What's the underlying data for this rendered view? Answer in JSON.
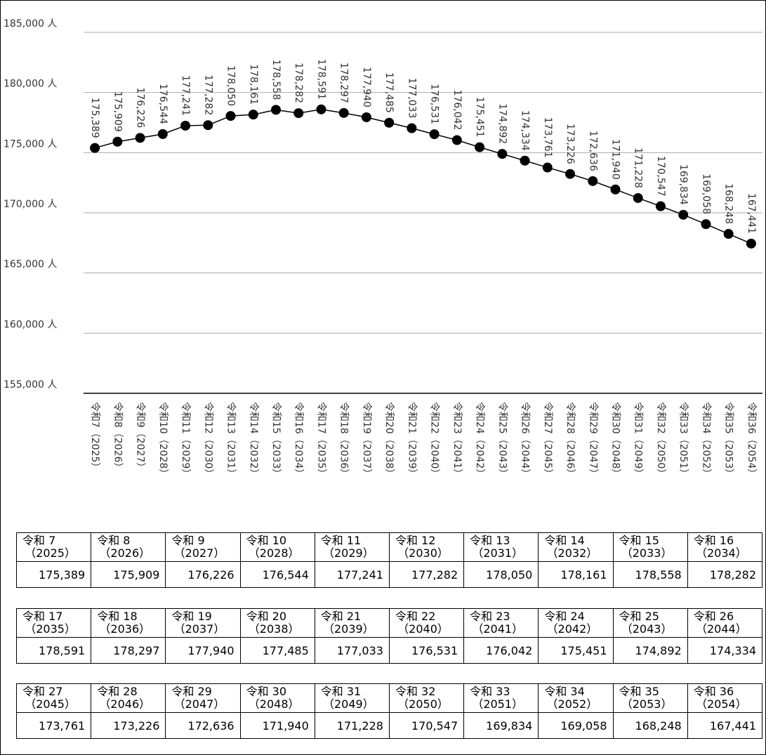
{
  "chart_data": {
    "type": "line",
    "categories": [
      "令和7（2025）",
      "令和8（2026）",
      "令和9（2027）",
      "令和10（2028）",
      "令和11（2029）",
      "令和12（2030）",
      "令和13（2031）",
      "令和14（2032）",
      "令和15（2033）",
      "令和16（2034）",
      "令和17（2035）",
      "令和18（2036）",
      "令和19（2037）",
      "令和20（2038）",
      "令和21（2039）",
      "令和22（2040）",
      "令和23（2041）",
      "令和24（2042）",
      "令和25（2043）",
      "令和26（2044）",
      "令和27（2045）",
      "令和28（2046）",
      "令和29（2047）",
      "令和30（2048）",
      "令和31（2049）",
      "令和32（2050）",
      "令和33（2051）",
      "令和34（2052）",
      "令和35（2053）",
      "令和36（2054）"
    ],
    "values": [
      175389,
      175909,
      176226,
      176544,
      177241,
      177282,
      178050,
      178161,
      178558,
      178282,
      178591,
      178297,
      177940,
      177485,
      177033,
      176531,
      176042,
      175451,
      174892,
      174334,
      173761,
      173226,
      172636,
      171940,
      171228,
      170547,
      169834,
      169058,
      168248,
      167441
    ],
    "value_labels": [
      "175,389",
      "175,909",
      "176,226",
      "176,544",
      "177,241",
      "177,282",
      "178,050",
      "178,161",
      "178,558",
      "178,282",
      "178,591",
      "178,297",
      "177,940",
      "177,485",
      "177,033",
      "176,531",
      "176,042",
      "175,451",
      "174,892",
      "174,334",
      "173,761",
      "173,226",
      "172,636",
      "171,940",
      "171,228",
      "170,547",
      "169,834",
      "169,058",
      "168,248",
      "167,441"
    ],
    "color": "#000000",
    "ylim": [
      155000,
      185000
    ],
    "yticks": [
      {
        "value": 155000,
        "label": "155,000 人"
      },
      {
        "value": 160000,
        "label": "160,000 人"
      },
      {
        "value": 165000,
        "label": "165,000 人"
      },
      {
        "value": 170000,
        "label": "170,000 人"
      },
      {
        "value": 175000,
        "label": "175,000 人"
      },
      {
        "value": 180000,
        "label": "180,000 人"
      },
      {
        "value": 185000,
        "label": "185,000 人"
      }
    ],
    "grid": true
  },
  "tables": [
    {
      "headers": [
        [
          "令和 7",
          "（2025）"
        ],
        [
          "令和 8",
          "（2026）"
        ],
        [
          "令和 9",
          "（2027）"
        ],
        [
          "令和 10",
          "（2028）"
        ],
        [
          "令和 11",
          "（2029）"
        ],
        [
          "令和 12",
          "（2030）"
        ],
        [
          "令和 13",
          "（2031）"
        ],
        [
          "令和 14",
          "（2032）"
        ],
        [
          "令和 15",
          "（2033）"
        ],
        [
          "令和 16",
          "（2034）"
        ]
      ],
      "values": [
        "175,389",
        "175,909",
        "176,226",
        "176,544",
        "177,241",
        "177,282",
        "178,050",
        "178,161",
        "178,558",
        "178,282"
      ]
    },
    {
      "headers": [
        [
          "令和 17",
          "（2035）"
        ],
        [
          "令和 18",
          "（2036）"
        ],
        [
          "令和 19",
          "（2037）"
        ],
        [
          "令和 20",
          "（2038）"
        ],
        [
          "令和 21",
          "（2039）"
        ],
        [
          "令和 22",
          "（2040）"
        ],
        [
          "令和 23",
          "（2041）"
        ],
        [
          "令和 24",
          "（2042）"
        ],
        [
          "令和 25",
          "（2043）"
        ],
        [
          "令和 26",
          "（2044）"
        ]
      ],
      "values": [
        "178,591",
        "178,297",
        "177,940",
        "177,485",
        "177,033",
        "176,531",
        "176,042",
        "175,451",
        "174,892",
        "174,334"
      ]
    },
    {
      "headers": [
        [
          "令和 27",
          "（2045）"
        ],
        [
          "令和 28",
          "（2046）"
        ],
        [
          "令和 29",
          "（2047）"
        ],
        [
          "令和 30",
          "（2048）"
        ],
        [
          "令和 31",
          "（2049）"
        ],
        [
          "令和 32",
          "（2050）"
        ],
        [
          "令和 33",
          "（2051）"
        ],
        [
          "令和 34",
          "（2052）"
        ],
        [
          "令和 35",
          "（2053）"
        ],
        [
          "令和 36",
          "（2054）"
        ]
      ],
      "values": [
        "173,761",
        "173,226",
        "172,636",
        "171,940",
        "171,228",
        "170,547",
        "169,834",
        "169,058",
        "168,248",
        "167,441"
      ]
    }
  ]
}
